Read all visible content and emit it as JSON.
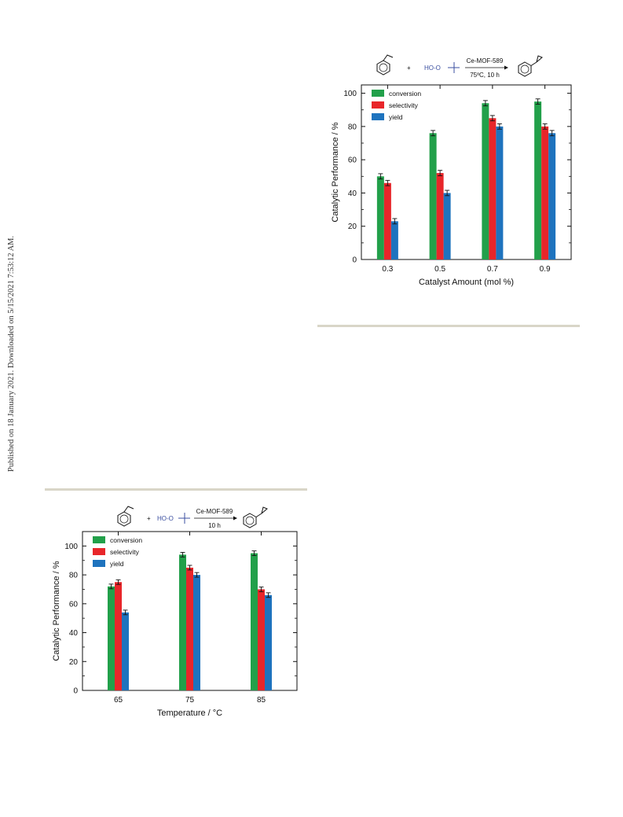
{
  "side_note": "Published on 18 January 2021. Downloaded on 5/15/2021 7:53:12 AM.",
  "chart_data": [
    {
      "type": "bar",
      "scheme": {
        "catalyst": "Ce-MOF-589",
        "conditions": "75ºC, 10 h",
        "plus": "+",
        "oxidant": "HO-O"
      },
      "xlabel": "Catalyst Amount (mol %)",
      "ylabel": "Catalytic Performance / %",
      "categories": [
        "0.3",
        "0.5",
        "0.7",
        "0.9"
      ],
      "ylim": [
        0,
        105
      ],
      "yticks": [
        "0",
        "20",
        "40",
        "60",
        "80",
        "100"
      ],
      "legend_position": "top-left",
      "grid": false,
      "error_bars": true,
      "series": [
        {
          "name": "conversion",
          "color": "#22a04a",
          "values": [
            50,
            76,
            94,
            95
          ]
        },
        {
          "name": "selectivity",
          "color": "#e8262a",
          "values": [
            46,
            52,
            85,
            80
          ]
        },
        {
          "name": "yield",
          "color": "#1e73be",
          "values": [
            23,
            40,
            80,
            76
          ]
        }
      ]
    },
    {
      "type": "bar",
      "scheme": {
        "catalyst": "Ce-MOF-589",
        "conditions": "10 h",
        "plus": "+",
        "oxidant": "HO-O"
      },
      "xlabel": "Temperature / °C",
      "ylabel": "Catalytic Performance / %",
      "categories": [
        "65",
        "75",
        "85"
      ],
      "ylim": [
        0,
        110
      ],
      "yticks": [
        "0",
        "20",
        "40",
        "60",
        "80",
        "100"
      ],
      "legend_position": "top-left",
      "grid": false,
      "error_bars": true,
      "series": [
        {
          "name": "conversion",
          "color": "#22a04a",
          "values": [
            72,
            94,
            95
          ]
        },
        {
          "name": "selectivity",
          "color": "#e8262a",
          "values": [
            75,
            85,
            70
          ]
        },
        {
          "name": "yield",
          "color": "#1e73be",
          "values": [
            54,
            80,
            66
          ]
        }
      ]
    }
  ]
}
